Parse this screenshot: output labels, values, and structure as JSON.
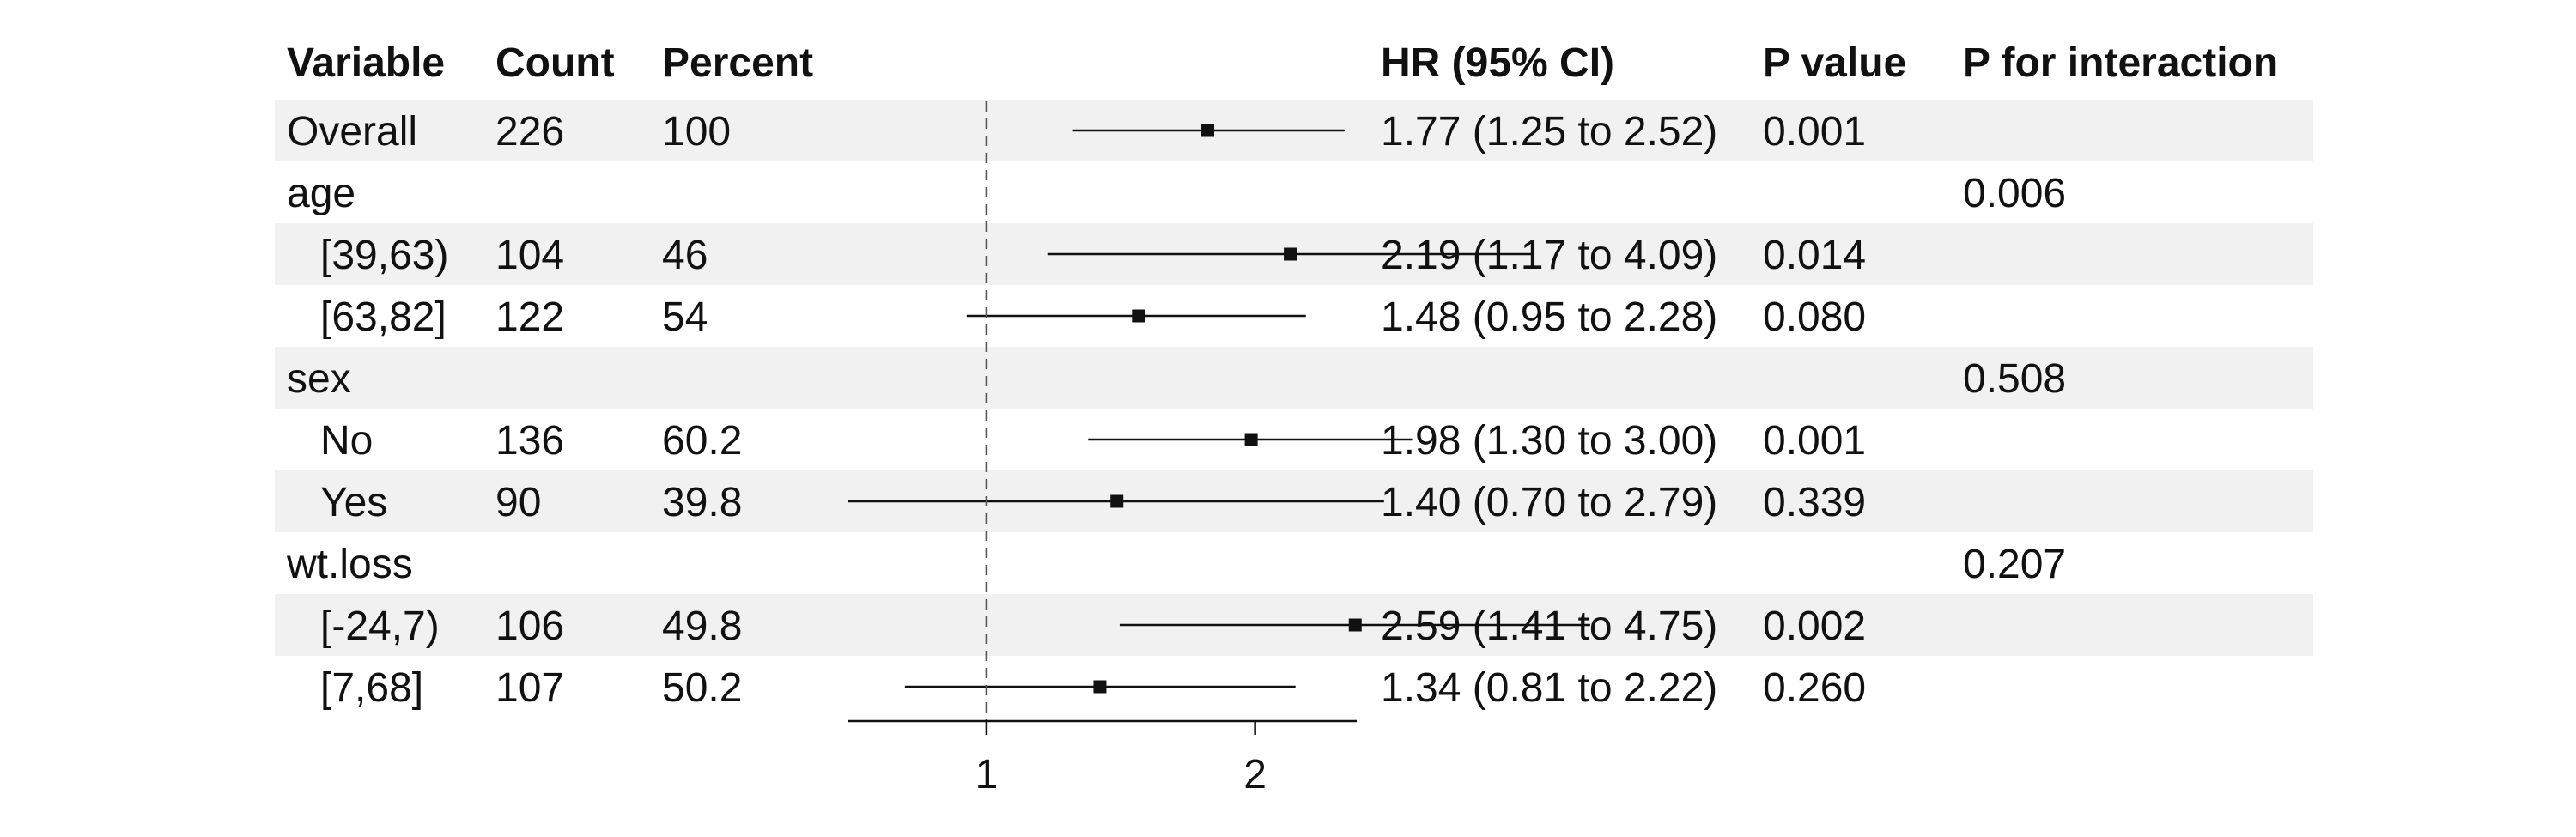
{
  "chart_data": {
    "type": "forest",
    "columns": {
      "variable": "Variable",
      "count": "Count",
      "percent": "Percent",
      "hr": "HR (95% CI)",
      "pvalue": "P value",
      "pint": "P for interaction"
    },
    "rows": [
      {
        "label": "Overall",
        "indent": false,
        "count": "226",
        "percent": "100",
        "hr_text": "1.77 (1.25 to 2.52)",
        "p": "0.001",
        "p_int": "",
        "est": 1.77,
        "lo": 1.25,
        "hi": 2.52,
        "shaded": true
      },
      {
        "label": "age",
        "indent": false,
        "count": "",
        "percent": "",
        "hr_text": "",
        "p": "",
        "p_int": "0.006",
        "est": null,
        "lo": null,
        "hi": null,
        "shaded": false
      },
      {
        "label": "[39,63)",
        "indent": true,
        "count": "104",
        "percent": "46",
        "hr_text": "2.19 (1.17 to 4.09)",
        "p": "0.014",
        "p_int": "",
        "est": 2.19,
        "lo": 1.17,
        "hi": 4.09,
        "shaded": true
      },
      {
        "label": "[63,82]",
        "indent": true,
        "count": "122",
        "percent": "54",
        "hr_text": "1.48 (0.95 to 2.28)",
        "p": "0.080",
        "p_int": "",
        "est": 1.48,
        "lo": 0.95,
        "hi": 2.28,
        "shaded": false
      },
      {
        "label": "sex",
        "indent": false,
        "count": "",
        "percent": "",
        "hr_text": "",
        "p": "",
        "p_int": "0.508",
        "est": null,
        "lo": null,
        "hi": null,
        "shaded": true
      },
      {
        "label": "No",
        "indent": true,
        "count": "136",
        "percent": "60.2",
        "hr_text": "1.98 (1.30 to 3.00)",
        "p": "0.001",
        "p_int": "",
        "est": 1.98,
        "lo": 1.3,
        "hi": 3.0,
        "shaded": false
      },
      {
        "label": "Yes",
        "indent": true,
        "count": "90",
        "percent": "39.8",
        "hr_text": "1.40 (0.70 to 2.79)",
        "p": "0.339",
        "p_int": "",
        "est": 1.4,
        "lo": 0.7,
        "hi": 2.79,
        "shaded": true
      },
      {
        "label": "wt.loss",
        "indent": false,
        "count": "",
        "percent": "",
        "hr_text": "",
        "p": "",
        "p_int": "0.207",
        "est": null,
        "lo": null,
        "hi": null,
        "shaded": false
      },
      {
        "label": "[-24,7)",
        "indent": true,
        "count": "106",
        "percent": "49.8",
        "hr_text": "2.59 (1.41 to 4.75)",
        "p": "0.002",
        "p_int": "",
        "est": 2.59,
        "lo": 1.41,
        "hi": 4.75,
        "shaded": true
      },
      {
        "label": "[7,68]",
        "indent": true,
        "count": "107",
        "percent": "50.2",
        "hr_text": "1.34 (0.81 to 2.22)",
        "p": "0.260",
        "p_int": "",
        "est": 1.34,
        "lo": 0.81,
        "hi": 2.22,
        "shaded": false
      }
    ],
    "x_axis": {
      "scale": "log",
      "range": [
        0.7,
        2.6
      ],
      "ticks": [
        1,
        2
      ],
      "reference": 1
    },
    "colors": {
      "shade": "#f0f1f0",
      "ink": "#111111",
      "reference": "#555555"
    }
  }
}
